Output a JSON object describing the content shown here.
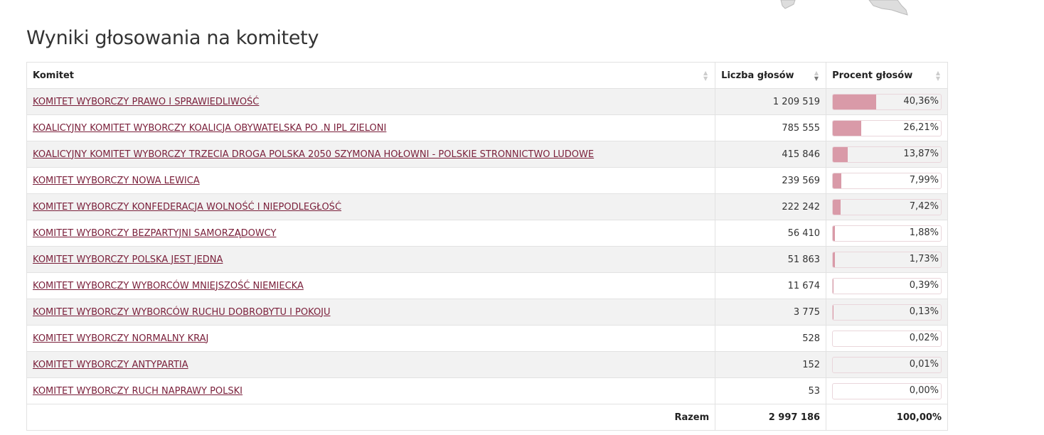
{
  "title": "Wyniki głosowania na komitety",
  "colors": {
    "bar": "#d99aa8",
    "link": "#7a1f3a",
    "stripe": "#f2f2f2"
  },
  "columns": {
    "committee": "Komitet",
    "votes": "Liczba głosów",
    "percent": "Procent głosów",
    "sorted_by": "votes",
    "sort_direction": "descending"
  },
  "rows": [
    {
      "name": "KOMITET WYBORCZY PRAWO I SPRAWIEDLIWOŚĆ",
      "votes": "1 209 519",
      "percent": "40,36%",
      "pct_value": 40.36
    },
    {
      "name": "KOALICYJNY KOMITET WYBORCZY KOALICJA OBYWATELSKA PO .N IPL ZIELONI",
      "votes": "785 555",
      "percent": "26,21%",
      "pct_value": 26.21
    },
    {
      "name": "KOALICYJNY KOMITET WYBORCZY TRZECIA DROGA POLSKA 2050 SZYMONA HOŁOWNI - POLSKIE STRONNICTWO LUDOWE",
      "votes": "415 846",
      "percent": "13,87%",
      "pct_value": 13.87
    },
    {
      "name": "KOMITET WYBORCZY NOWA LEWICA",
      "votes": "239 569",
      "percent": "7,99%",
      "pct_value": 7.99
    },
    {
      "name": "KOMITET WYBORCZY KONFEDERACJA WOLNOŚĆ I NIEPODLEGŁOŚĆ",
      "votes": "222 242",
      "percent": "7,42%",
      "pct_value": 7.42
    },
    {
      "name": "KOMITET WYBORCZY BEZPARTYJNI SAMORZĄDOWCY",
      "votes": "56 410",
      "percent": "1,88%",
      "pct_value": 1.88
    },
    {
      "name": "KOMITET WYBORCZY POLSKA JEST JEDNA",
      "votes": "51 863",
      "percent": "1,73%",
      "pct_value": 1.73
    },
    {
      "name": "KOMITET WYBORCZY WYBORCÓW MNIEJSZOŚĆ NIEMIECKA",
      "votes": "11 674",
      "percent": "0,39%",
      "pct_value": 0.39
    },
    {
      "name": "KOMITET WYBORCZY WYBORCÓW RUCHU DOBROBYTU I POKOJU",
      "votes": "3 775",
      "percent": "0,13%",
      "pct_value": 0.13
    },
    {
      "name": "KOMITET WYBORCZY NORMALNY KRAJ",
      "votes": "528",
      "percent": "0,02%",
      "pct_value": 0.02
    },
    {
      "name": "KOMITET WYBORCZY ANTYPARTIA",
      "votes": "152",
      "percent": "0,01%",
      "pct_value": 0.01
    },
    {
      "name": "KOMITET WYBORCZY RUCH NAPRAWY POLSKI",
      "votes": "53",
      "percent": "0,00%",
      "pct_value": 0.0
    }
  ],
  "total": {
    "label": "Razem",
    "votes": "2 997 186",
    "percent": "100,00%"
  }
}
